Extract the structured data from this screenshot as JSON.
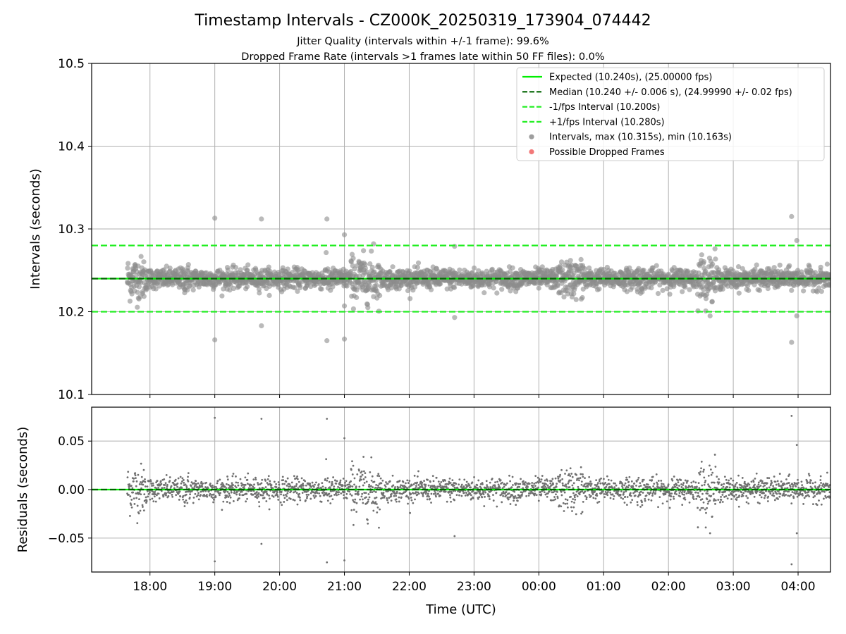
{
  "chart_data": [
    {
      "type": "scatter",
      "title": "Timestamp Intervals - CZ000K_20250319_173904_074442",
      "subtitle_lines": [
        "Jitter Quality (intervals within +/-1 frame): 99.6%",
        "Dropped Frame Rate (intervals >1 frames late within 50 FF files): 0.0%"
      ],
      "xlabel": "",
      "ylabel": "Intervals (seconds)",
      "xlim": [
        17.1,
        28.5
      ],
      "ylim": [
        10.1,
        10.5
      ],
      "x_ticks": [
        "18:00",
        "19:00",
        "20:00",
        "21:00",
        "22:00",
        "23:00",
        "00:00",
        "01:00",
        "02:00",
        "03:00",
        "04:00"
      ],
      "x_tick_values": [
        18,
        19,
        20,
        21,
        22,
        23,
        24,
        25,
        26,
        27,
        28
      ],
      "y_ticks": [
        "10.1",
        "10.2",
        "10.3",
        "10.4",
        "10.5"
      ],
      "y_tick_values": [
        10.1,
        10.2,
        10.3,
        10.4,
        10.5
      ],
      "grid": true,
      "legend_position": "top-right",
      "reference_lines": [
        {
          "name": "Expected (10.240s), (25.00000 fps)",
          "y": 10.24,
          "color": "#00ee00",
          "style": "solid"
        },
        {
          "name": "Median (10.240 +/- 0.006 s), (24.99990 +/- 0.02 fps)",
          "y": 10.24,
          "color": "#006400",
          "style": "dashed"
        },
        {
          "name": "-1/fps Interval (10.200s)",
          "y": 10.2,
          "color": "#22ee22",
          "style": "dashed"
        },
        {
          "name": "+1/fps Interval (10.280s)",
          "y": 10.28,
          "color": "#22ee22",
          "style": "dashed"
        }
      ],
      "series": [
        {
          "name": "Intervals, max (10.315s), min (10.163s)",
          "color": "#8c8c8c",
          "marker": "circle",
          "x_range": [
            17.65,
            28.5
          ],
          "center": 10.24,
          "typical_spread": 0.006,
          "outliers": [
            {
              "x": 19.0,
              "y": 10.313
            },
            {
              "x": 19.0,
              "y": 10.166
            },
            {
              "x": 19.72,
              "y": 10.312
            },
            {
              "x": 19.72,
              "y": 10.183
            },
            {
              "x": 20.73,
              "y": 10.312
            },
            {
              "x": 20.73,
              "y": 10.165
            },
            {
              "x": 21.0,
              "y": 10.293
            },
            {
              "x": 21.0,
              "y": 10.167
            },
            {
              "x": 21.0,
              "y": 10.207
            },
            {
              "x": 22.7,
              "y": 10.193
            },
            {
              "x": 27.9,
              "y": 10.315
            },
            {
              "x": 27.9,
              "y": 10.163
            },
            {
              "x": 27.98,
              "y": 10.286
            },
            {
              "x": 27.98,
              "y": 10.195
            },
            {
              "x": 21.45,
              "y": 10.282
            },
            {
              "x": 22.7,
              "y": 10.279
            }
          ]
        },
        {
          "name": "Possible Dropped Frames",
          "color": "#f06060",
          "marker": "circle",
          "points": []
        }
      ]
    },
    {
      "type": "scatter",
      "title": "",
      "xlabel": "Time (UTC)",
      "ylabel": "Residuals (seconds)",
      "xlim": [
        17.1,
        28.5
      ],
      "ylim": [
        -0.085,
        0.085
      ],
      "x_ticks": [
        "18:00",
        "19:00",
        "20:00",
        "21:00",
        "22:00",
        "23:00",
        "00:00",
        "01:00",
        "02:00",
        "03:00",
        "04:00"
      ],
      "x_tick_values": [
        18,
        19,
        20,
        21,
        22,
        23,
        24,
        25,
        26,
        27,
        28
      ],
      "y_ticks": [
        "−0.05",
        "0.00",
        "0.05"
      ],
      "y_tick_values": [
        -0.05,
        0.0,
        0.05
      ],
      "grid": true,
      "reference_lines": [
        {
          "y": 0.0,
          "color": "#00ee00",
          "style": "solid"
        },
        {
          "y": 0.0,
          "color": "#006400",
          "style": "dashed"
        }
      ],
      "series": [
        {
          "name": "",
          "color": "#707070",
          "marker": "dot",
          "x_range": [
            17.65,
            28.5
          ],
          "center": 0.0,
          "typical_spread": 0.006,
          "outliers": [
            {
              "x": 19.0,
              "y": 0.074
            },
            {
              "x": 19.0,
              "y": -0.074
            },
            {
              "x": 19.72,
              "y": 0.073
            },
            {
              "x": 19.72,
              "y": -0.056
            },
            {
              "x": 20.73,
              "y": 0.073
            },
            {
              "x": 20.73,
              "y": -0.075
            },
            {
              "x": 21.0,
              "y": 0.053
            },
            {
              "x": 21.0,
              "y": -0.073
            },
            {
              "x": 22.7,
              "y": -0.048
            },
            {
              "x": 27.9,
              "y": 0.076
            },
            {
              "x": 27.9,
              "y": -0.077
            },
            {
              "x": 27.98,
              "y": 0.046
            },
            {
              "x": 27.98,
              "y": -0.045
            }
          ]
        }
      ]
    }
  ]
}
